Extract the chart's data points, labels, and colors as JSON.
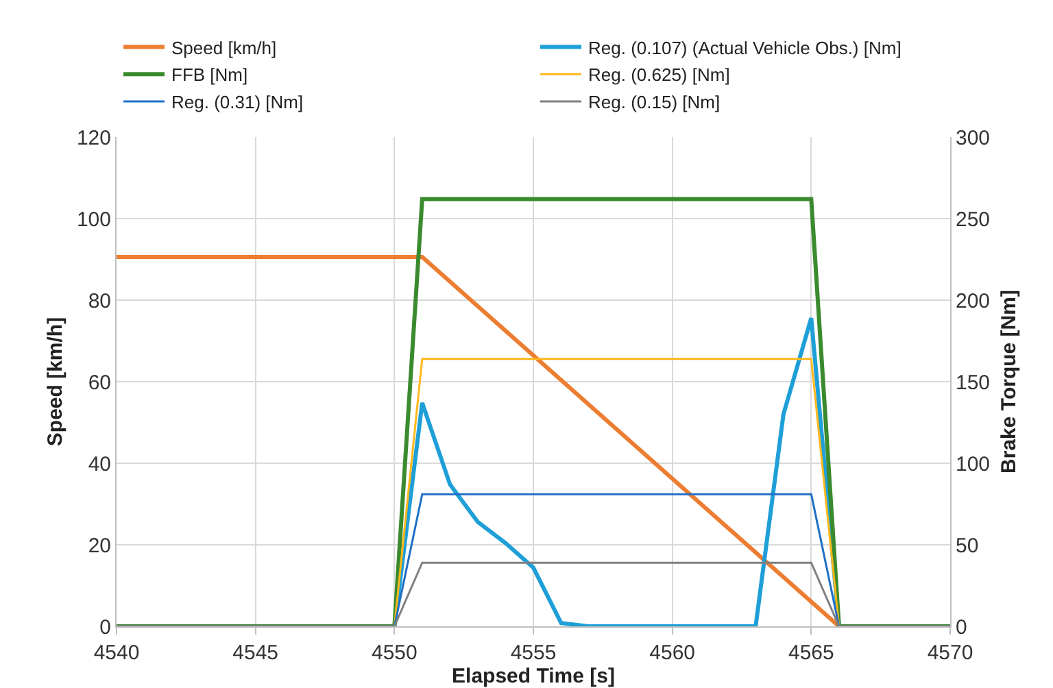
{
  "chart_data": {
    "type": "line",
    "xlabel": "Elapsed Time [s]",
    "ylabel": "Speed [km/h]",
    "y2label": "Brake Torque [Nm]",
    "xlim": [
      4540,
      4570
    ],
    "xticks": [
      4540,
      4545,
      4550,
      4555,
      4560,
      4565,
      4570
    ],
    "ylim": [
      0,
      120
    ],
    "yticks": [
      0,
      20,
      40,
      60,
      80,
      100,
      120
    ],
    "y2lim": [
      0,
      300
    ],
    "y2ticks": [
      0,
      50,
      100,
      150,
      200,
      250,
      300
    ],
    "grid": true,
    "legend": "top",
    "marker": "none",
    "line_style": "solid",
    "series": [
      {
        "name": "Speed [km/h]",
        "color": "#ed7d31",
        "x": [
          4540,
          4551,
          4566,
          4570
        ],
        "values": [
          90.6,
          90.6,
          0,
          0
        ]
      },
      {
        "name": "Reg. (0.107) (Actual Vehicle Obs.) [Nm]",
        "color": "#1f9fd8",
        "axis": "y2",
        "x": [
          4540,
          4550,
          4551,
          4552,
          4553,
          4554,
          4555,
          4556,
          4557,
          4563,
          4564,
          4565,
          4566,
          4570
        ],
        "values": [
          0,
          0,
          137,
          87,
          64,
          51,
          36,
          2,
          0,
          0,
          130,
          189,
          0,
          0
        ]
      },
      {
        "name": "FFB [Nm]",
        "color": "#3a8a2e",
        "axis": "y2",
        "x": [
          4540,
          4550,
          4551,
          4565,
          4566,
          4570
        ],
        "values": [
          0,
          0,
          262,
          262,
          0,
          0
        ]
      },
      {
        "name": "Reg. (0.625) [Nm]",
        "color": "#ffb81c",
        "axis": "y2",
        "x": [
          4540,
          4550,
          4551,
          4565,
          4566,
          4570
        ],
        "values": [
          0,
          0,
          164,
          164,
          0,
          0
        ]
      },
      {
        "name": "Reg. (0.31) [Nm]",
        "color": "#1f6fc5",
        "axis": "y2",
        "x": [
          4540,
          4550,
          4551,
          4565,
          4566,
          4570
        ],
        "values": [
          0,
          0,
          81,
          81,
          0,
          0
        ]
      },
      {
        "name": "Reg. (0.15) [Nm]",
        "color": "#808080",
        "axis": "y2",
        "x": [
          4540,
          4550,
          4551,
          4565,
          4566,
          4570
        ],
        "values": [
          0,
          0,
          39,
          39,
          0,
          0
        ]
      }
    ]
  }
}
